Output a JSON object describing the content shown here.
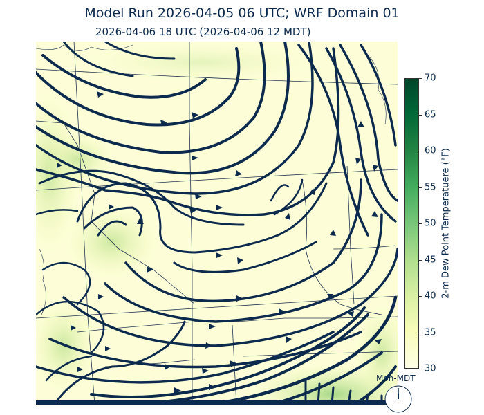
{
  "title": "Model Run 2026-04-05 06 UTC; WRF Domain 01",
  "subtitle": "2026-04-06 18 UTC  (2026-04-06 12 MDT)",
  "colorbar": {
    "label": "2-m Dew Point Temperatuere (°F)",
    "ticks": [
      "70",
      "65",
      "60",
      "55",
      "50",
      "45",
      "40",
      "35",
      "30"
    ],
    "min": 30,
    "max": 70,
    "colors": [
      "#ffffe5",
      "#f7fcb9",
      "#d9f0a3",
      "#addd8e",
      "#78c679",
      "#41ab5d",
      "#238443",
      "#006837",
      "#004529"
    ]
  },
  "clock": {
    "label": "Mon-MDT"
  },
  "map": {
    "streamline_color": "#0c2a4d",
    "boundary_color": "#1f3550"
  }
}
